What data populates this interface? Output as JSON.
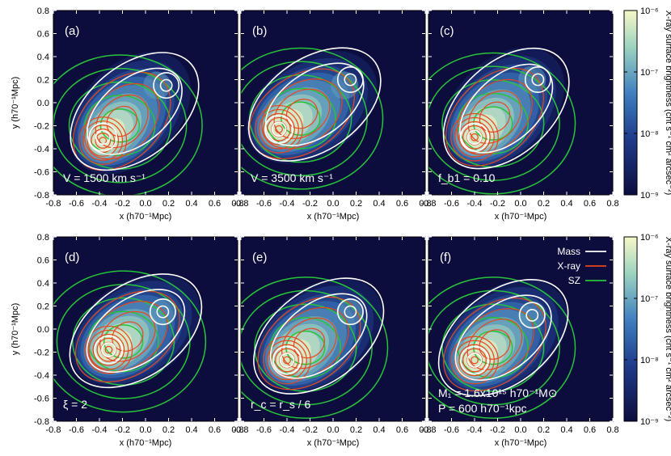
{
  "chart_data": {
    "type": "heatmap",
    "colormap": [
      "#0d0d3d",
      "#1f3a8a",
      "#3f7fc0",
      "#9cd3c0",
      "#f7f7c8"
    ],
    "contour_colors": {
      "mass": "#ffffff",
      "xray": "#e8461e",
      "sz": "#27c43a"
    },
    "xlabel": "x (h70⁻¹Mpc)",
    "ylabel": "y (h70⁻¹Mpc)",
    "xlim": [
      -0.8,
      0.8
    ],
    "ylim": [
      -0.8,
      0.8
    ],
    "xticks": [
      "-0.8",
      "-0.6",
      "-0.4",
      "-0.2",
      "0.0",
      "0.2",
      "0.4",
      "0.6",
      "0.8"
    ],
    "yticks": [
      "0.8",
      "0.6",
      "0.4",
      "0.2",
      "0.0",
      "-0.2",
      "-0.4",
      "-0.6",
      "-0.8"
    ],
    "colorbar": {
      "label": "X-ray surface brightness (cnt s⁻¹ cm² arcsec⁻²)",
      "ticks": [
        "10⁻⁶",
        "10⁻⁷",
        "10⁻⁸",
        "10⁻⁹"
      ],
      "range": [
        1e-09,
        1e-06
      ],
      "scale": "log"
    },
    "legend": {
      "position": "top-right",
      "entries": [
        "Mass",
        "X-ray",
        "SZ"
      ]
    },
    "panels": [
      {
        "label": "(a)",
        "annotation": "V = 1500 km s⁻¹",
        "annotation2": "",
        "xray_peaks": [
          {
            "x": -0.37,
            "y": -0.33
          },
          {
            "x": 0.1,
            "y": 0.15
          }
        ],
        "mass_peaks": [
          {
            "x": -0.37,
            "y": -0.3
          },
          {
            "x": 0.18,
            "y": 0.15
          }
        ]
      },
      {
        "label": "(b)",
        "annotation": "V = 3500 km s⁻¹",
        "annotation2": "",
        "xray_peaks": [
          {
            "x": -0.47,
            "y": -0.23
          },
          {
            "x": 0.1,
            "y": 0.15
          }
        ],
        "mass_peaks": [
          {
            "x": -0.47,
            "y": -0.23
          },
          {
            "x": 0.15,
            "y": 0.2
          }
        ]
      },
      {
        "label": "(c)",
        "annotation": "f_b1 = 0.10",
        "annotation2": "",
        "xray_peaks": [
          {
            "x": -0.4,
            "y": -0.3
          },
          {
            "x": 0.1,
            "y": 0.2
          }
        ],
        "mass_peaks": [
          {
            "x": -0.4,
            "y": -0.3
          },
          {
            "x": 0.15,
            "y": 0.2
          }
        ]
      },
      {
        "label": "(d)",
        "annotation": "ξ = 2",
        "annotation2": "",
        "xray_peaks": [
          {
            "x": -0.32,
            "y": -0.18
          },
          {
            "x": 0.15,
            "y": 0.15
          }
        ],
        "mass_peaks": [
          {
            "x": -0.32,
            "y": -0.18
          },
          {
            "x": 0.15,
            "y": 0.15
          }
        ]
      },
      {
        "label": "(e)",
        "annotation": "r_c = r_s / 6",
        "annotation2": "",
        "xray_peaks": [
          {
            "x": -0.4,
            "y": -0.27
          },
          {
            "x": 0.15,
            "y": 0.15
          }
        ],
        "mass_peaks": [
          {
            "x": -0.4,
            "y": -0.27
          },
          {
            "x": 0.15,
            "y": 0.15
          }
        ]
      },
      {
        "label": "(f)",
        "annotation": "M₁ = 1.6x10¹⁵ h70⁻¹M⊙",
        "annotation2": "P = 600 h70⁻¹kpc",
        "xray_peaks": [
          {
            "x": -0.4,
            "y": -0.27
          },
          {
            "x": 0.1,
            "y": 0.12
          }
        ],
        "mass_peaks": [
          {
            "x": -0.4,
            "y": -0.27
          },
          {
            "x": 0.1,
            "y": 0.12
          }
        ]
      }
    ]
  }
}
